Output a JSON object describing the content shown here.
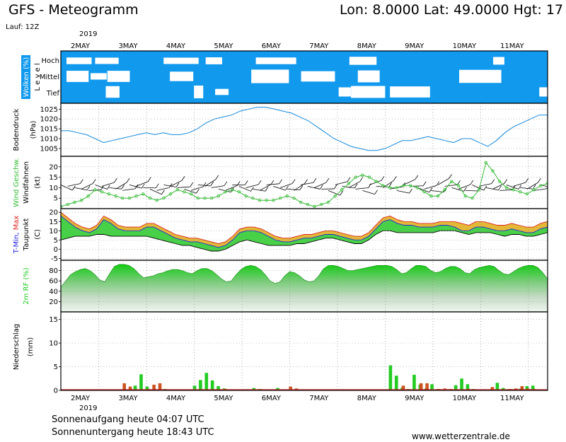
{
  "header": {
    "title": "GFS - Meteogramm",
    "coords": "Lon: 8.0000  Lat: 49.0000  Hgt: 17",
    "run": "Lauf: 12Z"
  },
  "footer": {
    "sunrise": "Sonnenaufgang heute 04:07 UTC",
    "sunset": "Sonnenuntergang heute 18:43 UTC",
    "site": "www.wetterzentrale.de"
  },
  "colors": {
    "cloud_bg": "#1199ee",
    "pressure": "#1188dd",
    "wind": "#33bb33",
    "tmin": "#2222dd",
    "tmax": "#dd2222",
    "rh": "#22cc22",
    "precip_conv": "#22cc22",
    "precip_strat": "#cc5522"
  },
  "chart_data": {
    "year": "2019",
    "days": [
      "2MAY",
      "3MAY",
      "4MAY",
      "5MAY",
      "6MAY",
      "7MAY",
      "8MAY",
      "9MAY",
      "10MAY",
      "11MAY"
    ],
    "panels": [
      {
        "id": "clouds",
        "type": "heatmap",
        "ylabel_main": "Wolken (%)",
        "ylabel_sub": "L e v e l",
        "levels": [
          "Hoch",
          "Mittel",
          "Tief"
        ]
      },
      {
        "id": "pressure",
        "type": "line",
        "ylabel_main": "Bodendruck",
        "ylabel_sub": "(hPa)",
        "yticks": [
          1005,
          1010,
          1015,
          1020,
          1025
        ],
        "ylim": [
          1001,
          1028
        ],
        "series": [
          {
            "values": [
              1014,
              1014,
              1013,
              1012,
              1010,
              1008,
              1009,
              1010,
              1011,
              1012,
              1013,
              1012,
              1013,
              1012,
              1012,
              1013,
              1015,
              1018,
              1020,
              1021,
              1022,
              1024,
              1025,
              1026,
              1026,
              1025,
              1024,
              1023,
              1021,
              1019,
              1016,
              1013,
              1010,
              1008,
              1006,
              1005,
              1004,
              1004,
              1005,
              1007,
              1009,
              1009,
              1010,
              1011,
              1010,
              1009,
              1008,
              1010,
              1010,
              1008,
              1006,
              1009,
              1013,
              1016,
              1018,
              1020,
              1022,
              1022
            ]
          }
        ]
      },
      {
        "id": "wind",
        "type": "line",
        "ylabel_main": "Wind Geschw.",
        "ylabel_sub": "(kt)",
        "ylabel_alt": "Windfahnen",
        "yticks": [
          5,
          10,
          15,
          20
        ],
        "ylim": [
          0,
          25
        ],
        "series": [
          {
            "values": [
              1,
              2,
              3,
              4,
              6,
              9,
              8,
              7,
              6,
              5,
              5,
              6,
              7,
              5,
              4,
              5,
              7,
              9,
              8,
              7,
              5,
              5,
              5,
              6,
              8,
              9,
              8,
              6,
              5,
              4,
              4,
              4,
              5,
              6,
              5,
              3,
              2,
              1,
              2,
              3,
              6,
              9,
              12,
              15,
              16,
              15,
              13,
              11,
              10,
              10,
              11,
              11,
              10,
              8,
              6,
              6,
              9,
              13,
              11,
              6,
              5,
              9,
              22,
              18,
              13,
              10,
              9,
              8,
              7,
              9,
              11,
              12
            ]
          }
        ]
      },
      {
        "id": "temp",
        "type": "line",
        "ylabel_main": "T-Min, Max",
        "ylabel_sub": "(C)",
        "ylabel_alt": "Taupunkt",
        "yticks": [
          -5,
          0,
          5,
          10,
          15,
          20
        ],
        "ylim": [
          -6,
          22
        ],
        "series": [
          {
            "values": [
              18,
              15,
              12,
              10,
              9,
              11,
              16,
              14,
              11,
              10,
              10,
              10,
              12,
              12,
              10,
              8,
              6,
              5,
              4,
              4,
              3,
              2,
              1,
              2,
              5,
              9,
              10,
              10,
              9,
              7,
              5,
              4,
              4,
              5,
              6,
              6,
              7,
              8,
              8,
              7,
              6,
              5,
              5,
              7,
              11,
              15,
              16,
              14,
              13,
              13,
              12,
              12,
              12,
              13,
              13,
              12,
              10,
              10,
              12,
              12,
              11,
              10,
              10,
              11,
              10,
              9,
              9,
              11,
              12
            ]
          },
          {
            "values": [
              20,
              17,
              14,
              12,
              11,
              13,
              18,
              16,
              13,
              12,
              12,
              12,
              14,
              14,
              12,
              10,
              8,
              7,
              6,
              6,
              5,
              4,
              3,
              4,
              7,
              11,
              12,
              12,
              11,
              9,
              7,
              6,
              6,
              7,
              8,
              8,
              9,
              10,
              10,
              9,
              8,
              7,
              7,
              9,
              13,
              17,
              18,
              16,
              15,
              15,
              14,
              14,
              14,
              15,
              15,
              15,
              14,
              13,
              15,
              15,
              14,
              13,
              13,
              14,
              13,
              12,
              12,
              14,
              15
            ]
          },
          {
            "values": [
              5,
              6,
              7,
              7,
              7,
              8,
              8,
              7,
              7,
              7,
              7,
              7,
              7,
              6,
              5,
              4,
              3,
              2,
              2,
              1,
              0,
              -1,
              -1,
              0,
              2,
              4,
              5,
              4,
              3,
              2,
              2,
              2,
              2,
              3,
              3,
              4,
              5,
              6,
              6,
              5,
              4,
              3,
              3,
              5,
              8,
              10,
              10,
              9,
              9,
              9,
              9,
              9,
              9,
              10,
              10,
              10,
              9,
              8,
              9,
              9,
              9,
              8,
              7,
              8,
              8,
              7,
              7,
              8,
              9
            ]
          }
        ]
      },
      {
        "id": "rh",
        "type": "area",
        "ylabel_main": "2m RF (%)",
        "yticks": [
          20,
          40,
          60,
          80
        ],
        "ylim": [
          0,
          100
        ],
        "series": [
          {
            "values": [
              48,
              60,
              72,
              78,
              82,
              84,
              80,
              72,
              62,
              58,
              74,
              88,
              92,
              92,
              90,
              84,
              74,
              66,
              68,
              70,
              74,
              76,
              80,
              82,
              82,
              80,
              76,
              74,
              80,
              84,
              84,
              80,
              72,
              64,
              58,
              60,
              72,
              82,
              88,
              90,
              88,
              82,
              72,
              60,
              55,
              58,
              70,
              78,
              76,
              70,
              62,
              58,
              60,
              70,
              84,
              90,
              90,
              88,
              84,
              80,
              80,
              82,
              84,
              86,
              88,
              90,
              90,
              90,
              88,
              82,
              74,
              76,
              84,
              90,
              90,
              88,
              80,
              76,
              78,
              84,
              88,
              88,
              84,
              76,
              74,
              82,
              86,
              88,
              90,
              88,
              80,
              74,
              72,
              78,
              84,
              88,
              90,
              90,
              86,
              76,
              64
            ]
          }
        ]
      },
      {
        "id": "precip",
        "type": "bar",
        "ylabel_main": "Niederschlag",
        "ylabel_sub": "(mm)",
        "yticks": [
          0,
          5,
          10,
          15
        ],
        "ylim": [
          0,
          16.6
        ],
        "series": [
          {
            "name": "conv",
            "values": [
              0,
              0,
              0,
              0,
              0,
              0,
              0,
              0,
              0,
              0,
              0,
              0,
              1.0,
              3.4,
              0.8,
              0,
              0,
              0.3,
              0,
              0,
              0,
              0,
              1.0,
              2.2,
              3.7,
              2.1,
              0.9,
              0.4,
              0,
              0,
              0,
              0,
              0.5,
              0.3,
              0.1,
              0.1,
              0.5,
              0.2,
              0,
              0,
              0,
              0,
              0,
              0,
              0,
              0,
              0,
              0,
              0,
              0,
              0,
              0,
              0,
              0,
              0,
              5.3,
              3.1,
              0.6,
              0.3,
              3.3,
              1.2,
              0.4,
              1.3,
              0.3,
              0,
              0.2,
              1.1,
              2.5,
              1.3,
              0.3,
              0,
              0,
              0,
              1.6,
              0.5,
              0.3,
              0.3,
              0.4,
              0.9,
              1.0,
              0,
              0
            ]
          },
          {
            "name": "strat",
            "values": [
              0,
              0,
              0,
              0,
              0,
              0,
              0,
              0,
              0,
              0,
              1.5,
              0.8,
              0,
              0,
              0.3,
              1.2,
              1.5,
              0,
              0,
              0,
              0,
              0,
              0,
              0,
              0,
              0,
              0,
              0.3,
              0.2,
              0,
              0,
              0,
              0,
              0,
              0,
              0,
              0,
              0,
              0.8,
              0.4,
              0.2,
              0,
              0,
              0,
              0,
              0,
              0,
              0,
              0,
              0,
              0,
              0,
              0,
              0,
              0,
              0,
              0,
              1.0,
              0.2,
              0,
              1.5,
              1.5,
              0,
              0.3,
              0.4,
              0.3,
              0,
              0,
              0.3,
              0.1,
              0,
              0,
              0.7,
              0,
              0,
              0.3,
              0.4,
              0.9,
              0.4,
              0.3,
              0,
              0
            ]
          }
        ]
      }
    ]
  }
}
